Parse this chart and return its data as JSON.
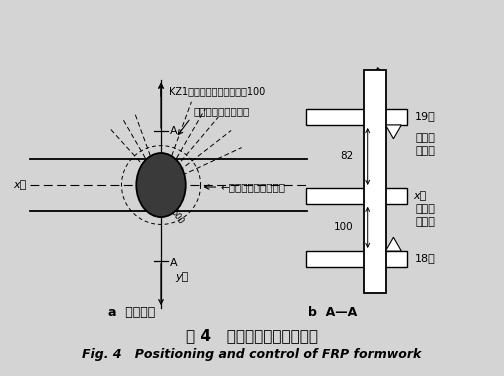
{
  "title_cn": "图 4   玻璃钢模定位控制示意",
  "title_en": "Fig. 4   Positioning and control of FRP formwork",
  "bg_color": "#d4d4d4",
  "label_a": "a  定位控制",
  "label_b": "b  A—A",
  "annot_upper": "玻璃钢模定位控制点",
  "annot_lower": "←玻璃钢模定位控制点",
  "kz1_text": "KZ1往轴线方向偏移，每层100",
  "x_dir_left": "x向",
  "y_dir": "y向",
  "layer19": "19层",
  "layer18": "18层",
  "text_scp": "采用散\n拼模板",
  "text_frp": "采用玻\n璃钢模",
  "dim82": "82",
  "dim100": "100",
  "x_dir_right": "x向",
  "label_A": "A"
}
